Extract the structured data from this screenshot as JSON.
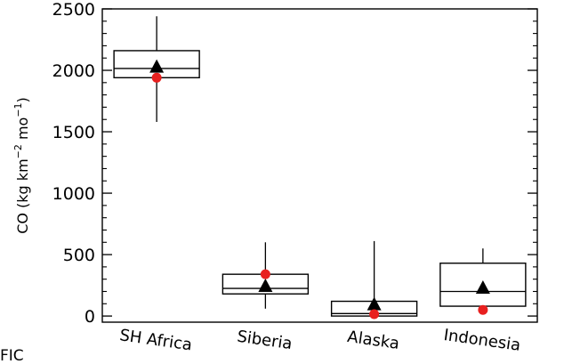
{
  "corner_text": "FIC",
  "chart_data": {
    "type": "box",
    "categories": [
      "SH Africa",
      "Siberia",
      "Alaska",
      "Indonesia"
    ],
    "ylabel_parts": [
      "CO (kg km",
      "−2",
      " mo",
      "−1",
      ")"
    ],
    "ylim": [
      -50,
      2500
    ],
    "yticks": [
      0,
      500,
      1000,
      1500,
      2000,
      2500
    ],
    "ytick_labels": [
      "0",
      "500",
      "1000",
      "1500",
      "2000",
      "2500"
    ],
    "grid": false,
    "legend": "none",
    "boxes": [
      {
        "whisker_low": 1580,
        "q1": 1940,
        "median": 2015,
        "q3": 2160,
        "whisker_high": 2440,
        "mean": 2025,
        "red_marker": 1940
      },
      {
        "whisker_low": 60,
        "q1": 180,
        "median": 225,
        "q3": 340,
        "whisker_high": 600,
        "mean": 240,
        "red_marker": 340
      },
      {
        "whisker_low": -10,
        "q1": 0,
        "median": 20,
        "q3": 120,
        "whisker_high": 610,
        "mean": 90,
        "red_marker": 15
      },
      {
        "whisker_low": 80,
        "q1": 80,
        "median": 200,
        "q3": 430,
        "whisker_high": 550,
        "mean": 225,
        "red_marker": 50
      }
    ],
    "colors": {
      "box": "#000000",
      "mean_marker": "#000000",
      "red_marker": "#e8201f"
    }
  }
}
